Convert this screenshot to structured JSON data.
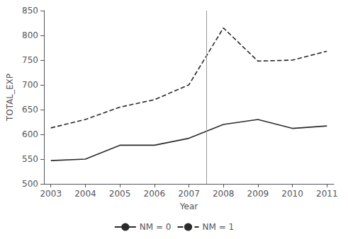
{
  "chart_data": {
    "type": "line",
    "x": [
      2003,
      2004,
      2005,
      2006,
      2007,
      2008,
      2009,
      2010,
      2011
    ],
    "series": [
      {
        "name": "NM = 0",
        "color": "#2b2b2b",
        "line_style": "solid",
        "values": [
          547,
          550,
          578,
          578,
          592,
          620,
          630,
          612,
          617
        ]
      },
      {
        "name": "NM = 1",
        "color": "#2b2b2b",
        "line_style": "dashed",
        "values": [
          613,
          630,
          655,
          670,
          700,
          815,
          748,
          750,
          768
        ]
      }
    ],
    "xlabel": "Year",
    "ylabel": "TOTAL_EXP",
    "xlim": [
      2002.8,
      2011.2
    ],
    "xticks": [
      2003,
      2004,
      2005,
      2006,
      2007,
      2008,
      2009,
      2010,
      2011
    ],
    "ylim": [
      500,
      850
    ],
    "yticks": [
      500,
      550,
      600,
      650,
      700,
      750,
      800,
      850
    ],
    "vlines": [
      {
        "x": 2007.5,
        "color": "#999999"
      }
    ],
    "legend": "bottom",
    "grid": false
  }
}
